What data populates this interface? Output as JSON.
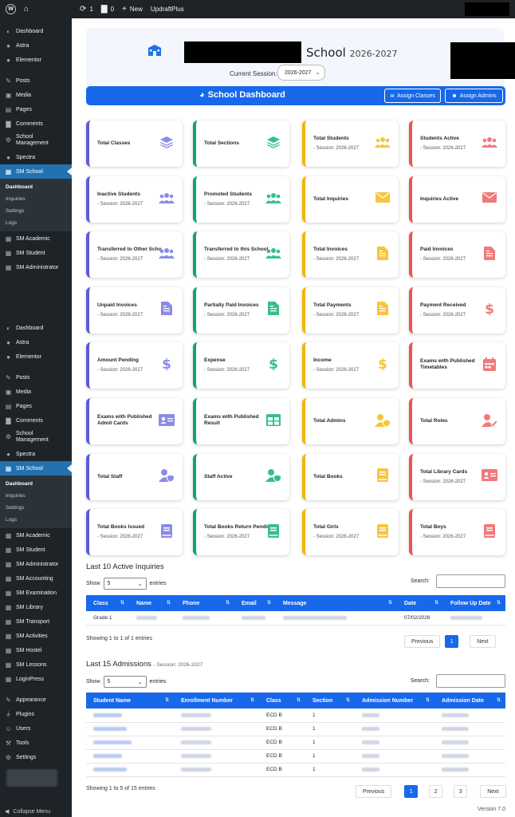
{
  "adminbar": {
    "updates_count": "1",
    "comments_count": "0",
    "new_label": "New",
    "plugin_label": "UpdraftPlus"
  },
  "sidebar": {
    "top_items": [
      {
        "label": "Dashboard",
        "icon": "gauge-icon"
      },
      {
        "label": "Astra",
        "icon": "astra-icon"
      },
      {
        "label": "Elementor",
        "icon": "elementor-icon"
      }
    ],
    "mid_items": [
      {
        "label": "Posts",
        "icon": "pin-icon"
      },
      {
        "label": "Media",
        "icon": "media-icon"
      },
      {
        "label": "Pages",
        "icon": "page-icon"
      },
      {
        "label": "Comments",
        "icon": "comment-icon"
      }
    ],
    "school_management": "School Management",
    "spectra": "Spectra",
    "sm_school": "SM School",
    "submenu": [
      "Dashboard",
      "Inquiries",
      "Settings",
      "Logs"
    ],
    "after_items": [
      "SM Academic",
      "SM Student",
      "SM Administrator"
    ],
    "second_after_items": [
      "SM Academic",
      "SM Student",
      "SM Administrator",
      "SM Accounting",
      "SM Examination",
      "SM Library",
      "SM Transport",
      "SM Activities",
      "SM Hostel",
      "SM Lessons",
      "LoginPress"
    ],
    "bottom_items": [
      "Appearance",
      "Plugins",
      "Users",
      "Tools",
      "Settings"
    ],
    "collapse": "Collapse Menu"
  },
  "header": {
    "school_word": "School",
    "session_year": "2026-2027",
    "current_session_label": "Current Session:",
    "session_value": "2026-2027"
  },
  "dashbar": {
    "title": "School Dashboard",
    "assign_classes": "Assign Classes",
    "assign_admins": "Assign Admins"
  },
  "cards": [
    {
      "title": "Total Classes",
      "sub": "",
      "color": "#5b5bd6",
      "icon": "layers-icon"
    },
    {
      "title": "Total Sections",
      "sub": "",
      "color": "#12a56b",
      "icon": "layers-icon"
    },
    {
      "title": "Total Students",
      "sub": "- Session: 2026-2027",
      "color": "#f5b400",
      "icon": "users-icon"
    },
    {
      "title": "Students Active",
      "sub": "- Session: 2026-2027",
      "color": "#ec5353",
      "icon": "users-icon"
    },
    {
      "title": "Inactive Students",
      "sub": "- Session: 2026-2027",
      "color": "#5b5bd6",
      "icon": "users-icon"
    },
    {
      "title": "Promoted Students",
      "sub": "- Session: 2026-2027",
      "color": "#12a56b",
      "icon": "users-icon"
    },
    {
      "title": "Total Inquiries",
      "sub": "",
      "color": "#f5b400",
      "icon": "envelope-icon"
    },
    {
      "title": "Inquiries Active",
      "sub": "",
      "color": "#ec5353",
      "icon": "envelope-icon"
    },
    {
      "title": "Transferred to Other Scho",
      "sub": "- Session: 2026-2027",
      "color": "#5b5bd6",
      "icon": "users-icon"
    },
    {
      "title": "Transferred to this School",
      "sub": "- Session: 2026-2027",
      "color": "#12a56b",
      "icon": "users-icon"
    },
    {
      "title": "Total Invoices",
      "sub": "- Session: 2026-2027",
      "color": "#f5b400",
      "icon": "invoice-icon"
    },
    {
      "title": "Paid Invoices",
      "sub": "- Session: 2026-2027",
      "color": "#ec5353",
      "icon": "invoice-icon"
    },
    {
      "title": "Unpaid Invoices",
      "sub": "- Session: 2026-2027",
      "color": "#5b5bd6",
      "icon": "invoice-icon"
    },
    {
      "title": "Partially Paid Invoices",
      "sub": "- Session: 2026-2027",
      "color": "#12a56b",
      "icon": "invoice-icon"
    },
    {
      "title": "Total Payments",
      "sub": "- Session: 2026-2027",
      "color": "#f5b400",
      "icon": "invoice-icon"
    },
    {
      "title": "Payment Received",
      "sub": "- Session: 2026-2027",
      "color": "#ec5353",
      "icon": "dollar-icon"
    },
    {
      "title": "Amount Pending",
      "sub": "- Session: 2026-2027",
      "color": "#5b5bd6",
      "icon": "dollar-icon"
    },
    {
      "title": "Expense",
      "sub": "- Session: 2026-2027",
      "color": "#12a56b",
      "icon": "dollar-icon"
    },
    {
      "title": "Income",
      "sub": "- Session: 2026-2027",
      "color": "#f5b400",
      "icon": "dollar-icon"
    },
    {
      "title": "Exams with Published Timetables",
      "sub": "",
      "color": "#ec5353",
      "icon": "calendar-icon"
    },
    {
      "title": "Exams with Published Admit Cards",
      "sub": "",
      "color": "#5b5bd6",
      "icon": "id-card-icon"
    },
    {
      "title": "Exams with Published Result",
      "sub": "",
      "color": "#12a56b",
      "icon": "table-icon"
    },
    {
      "title": "Total Admins",
      "sub": "",
      "color": "#f5b400",
      "icon": "user-shield-icon"
    },
    {
      "title": "Total Roles",
      "sub": "",
      "color": "#ec5353",
      "icon": "user-edit-icon"
    },
    {
      "title": "Total Staff",
      "sub": "",
      "color": "#5b5bd6",
      "icon": "user-shield-icon"
    },
    {
      "title": "Staff Active",
      "sub": "",
      "color": "#12a56b",
      "icon": "user-shield-icon"
    },
    {
      "title": "Total Books",
      "sub": "",
      "color": "#f5b400",
      "icon": "book-icon"
    },
    {
      "title": "Total Library Cards",
      "sub": "- Session: 2026-2027",
      "color": "#ec5353",
      "icon": "id-card-icon"
    },
    {
      "title": "Total Books Issued",
      "sub": "- Session: 2026-2027",
      "color": "#5b5bd6",
      "icon": "book-icon"
    },
    {
      "title": "Total Books Return Pending",
      "sub": "- Session: 2026-2027",
      "color": "#12a56b",
      "icon": "book-icon"
    },
    {
      "title": "Total Girls",
      "sub": "- Session: 2026-2027",
      "color": "#f5b400",
      "icon": "book-icon"
    },
    {
      "title": "Total Boys",
      "sub": "- Session: 2026-2027",
      "color": "#ec5353",
      "icon": "book-icon"
    }
  ],
  "inquiries": {
    "title": "Last 10 Active Inquiries",
    "show": "Show",
    "entries_value": "5",
    "entries": "entries",
    "search": "Search:",
    "columns": [
      "Class",
      "Name",
      "Phone",
      "Email",
      "Message",
      "Date",
      "Follow Up Date"
    ],
    "row": {
      "class": "Grade 1",
      "date": "07/02/2026"
    },
    "info": "Showing 1 to 1 of 1 entries",
    "previous": "Previous",
    "page": "1",
    "next": "Next"
  },
  "admissions": {
    "title": "Last 15 Admissions",
    "session": "- Session: 2026-2027",
    "show": "Show",
    "entries_value": "5",
    "entries": "entries",
    "search": "Search:",
    "columns": [
      "Student Name",
      "Enrollment Number",
      "Class",
      "Section",
      "Admission Number",
      "Admission Date"
    ],
    "rows": [
      {
        "class": "ECD B",
        "section": "1"
      },
      {
        "class": "ECD B",
        "section": "1"
      },
      {
        "class": "ECD B",
        "section": "1"
      },
      {
        "class": "ECD B",
        "section": "1"
      },
      {
        "class": "ECD B",
        "section": "1"
      }
    ],
    "info": "Showing 1 to 5 of 15 entries",
    "previous": "Previous",
    "pages": [
      "1",
      "2",
      "3"
    ],
    "next": "Next"
  },
  "version": "Version 7.0"
}
